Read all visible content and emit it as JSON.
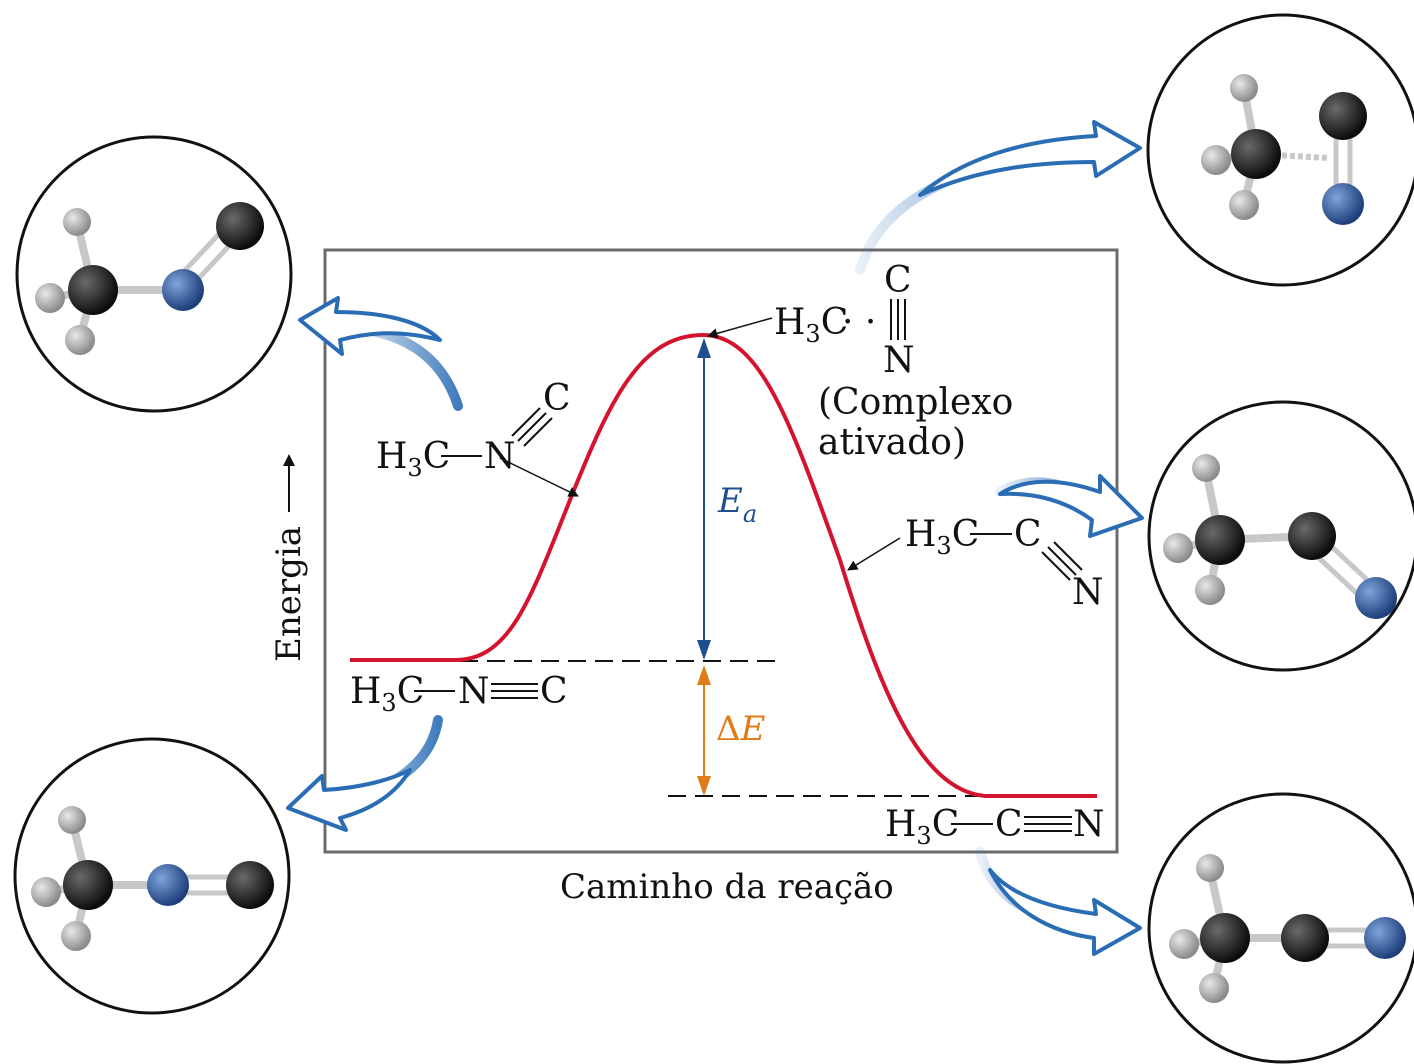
{
  "axes": {
    "x_label": "Caminho da reação",
    "y_label": "Energia"
  },
  "colors": {
    "curve": "#d4142f",
    "ea_arrow": "#1f4f8f",
    "delta_arrow": "#e07b17",
    "callout_arrow": "#2a6db5",
    "carbon_atom": "#161616",
    "nitrogen_atom": "#2e5fa8",
    "hydrogen_atom": "#9a9a9a"
  },
  "labels": {
    "ea_main": "E",
    "ea_sub": "a",
    "delta_symbol": "Δ",
    "delta_letter": "E",
    "complex_line1": "(Complexo",
    "complex_line2": "ativado)",
    "h3c_h": "H",
    "h3c_3": "3",
    "h3c_c": "C",
    "atom_n": "N",
    "atom_c": "C",
    "dots": "· ·"
  },
  "molecules": [
    {
      "name": "methyl-isocyanide-reactant",
      "formula": "H3C—N≡C"
    },
    {
      "name": "methyl-isocyanide-bent",
      "formula": "H3C—N≡C"
    },
    {
      "name": "activated-complex",
      "formula": "H3C···C≡N"
    },
    {
      "name": "acetonitrile-bent",
      "formula": "H3C—C≡N"
    },
    {
      "name": "acetonitrile-product",
      "formula": "H3C—C≡N"
    }
  ]
}
